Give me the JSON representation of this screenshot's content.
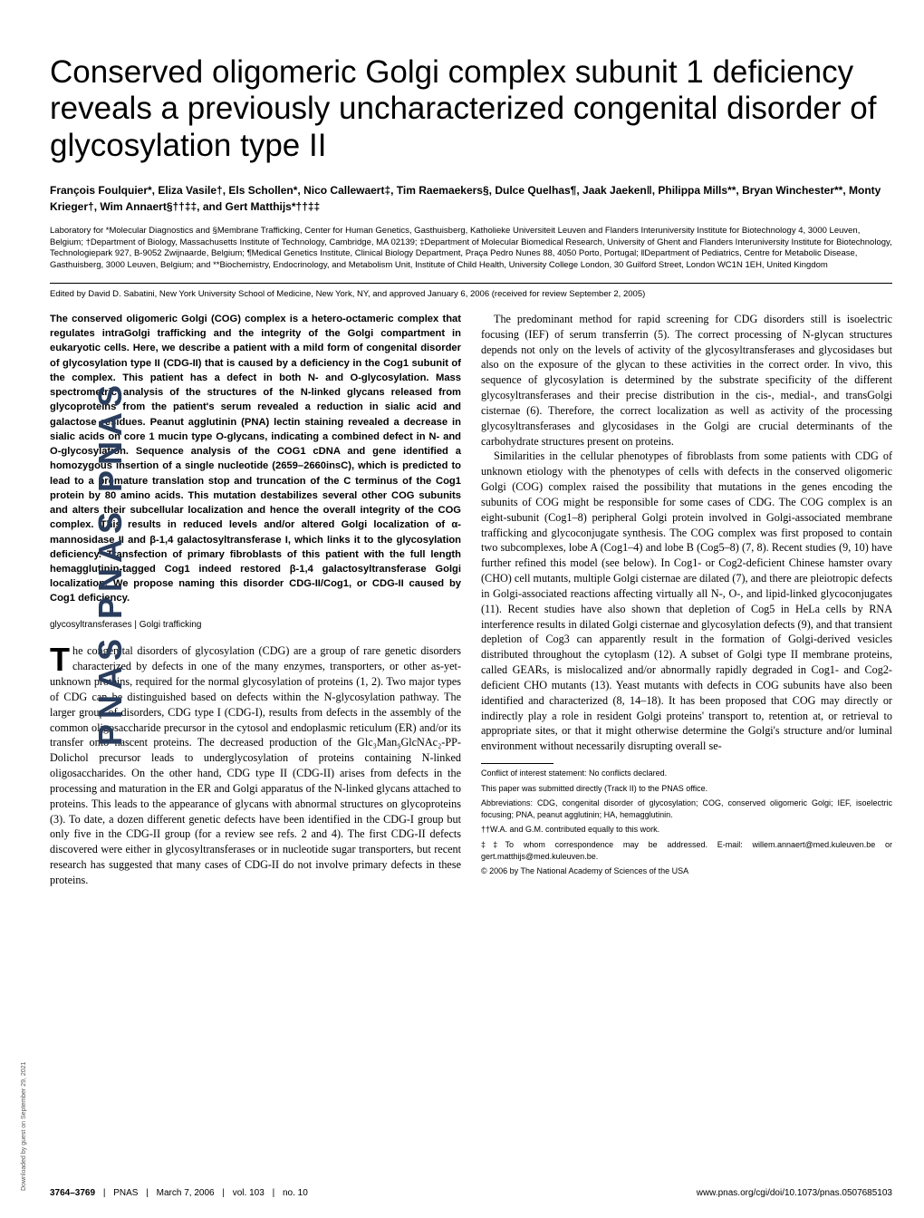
{
  "spine": "PNAS  PNAS  PNAS",
  "download_note": "Downloaded by guest on September 29, 2021",
  "title": "Conserved oligomeric Golgi complex subunit 1 deficiency reveals a previously uncharacterized congenital disorder of glycosylation type II",
  "authors": "François Foulquier*, Eliza Vasile†, Els Schollen*, Nico Callewaert‡, Tim Raemaekers§, Dulce Quelhas¶, Jaak Jaeken‖, Philippa Mills**, Bryan Winchester**, Monty Krieger†, Wim Annaert§††‡‡, and Gert Matthijs*††‡‡",
  "affiliations": "Laboratory for *Molecular Diagnostics and §Membrane Trafficking, Center for Human Genetics, Gasthuisberg, Katholieke Universiteit Leuven and Flanders Interuniversity Institute for Biotechnology 4, 3000 Leuven, Belgium; †Department of Biology, Massachusetts Institute of Technology, Cambridge, MA 02139; ‡Department of Molecular Biomedical Research, University of Ghent and Flanders Interuniversity Institute for Biotechnology, Technologiepark 927, B-9052 Zwijnaarde, Belgium; ¶Medical Genetics Institute, Clinical Biology Department, Praça Pedro Nunes 88, 4050 Porto, Portugal; ‖Department of Pediatrics, Centre for Metabolic Disease, Gasthuisberg, 3000 Leuven, Belgium; and **Biochemistry, Endocrinology, and Metabolism Unit, Institute of Child Health, University College London, 30 Guilford Street, London WC1N 1EH, United Kingdom",
  "editor": "Edited by David D. Sabatini, New York University School of Medicine, New York, NY, and approved January 6, 2006 (received for review September 2, 2005)",
  "abstract": "The conserved oligomeric Golgi (COG) complex is a hetero-octameric complex that regulates intraGolgi trafficking and the integrity of the Golgi compartment in eukaryotic cells. Here, we describe a patient with a mild form of congenital disorder of glycosylation type II (CDG-II) that is caused by a deficiency in the Cog1 subunit of the complex. This patient has a defect in both N- and O-glycosylation. Mass spectrometric analysis of the structures of the N-linked glycans released from glycoproteins from the patient's serum revealed a reduction in sialic acid and galactose residues. Peanut agglutinin (PNA) lectin staining revealed a decrease in sialic acids on core 1 mucin type O-glycans, indicating a combined defect in N- and O-glycosylation. Sequence analysis of the COG1 cDNA and gene identified a homozygous insertion of a single nucleotide (2659–2660insC), which is predicted to lead to a premature translation stop and truncation of the C terminus of the Cog1 protein by 80 amino acids. This mutation destabilizes several other COG subunits and alters their subcellular localization and hence the overall integrity of the COG complex. This results in reduced levels and/or altered Golgi localization of α-mannosidase II and β-1,4 galactosyltransferase I, which links it to the glycosylation deficiency. Transfection of primary fibroblasts of this patient with the full length hemagglutinin-tagged Cog1 indeed restored β-1,4 galactosyltransferase Golgi localization. We propose naming this disorder CDG-II/Cog1, or CDG-II caused by Cog1 deficiency.",
  "keywords": "glycosyltransferases | Golgi trafficking",
  "body_left_dropcap": "T",
  "body_left": "he congenital disorders of glycosylation (CDG) are a group of rare genetic disorders characterized by defects in one of the many enzymes, transporters, or other as-yet-unknown proteins, required for the normal glycosylation of proteins (1, 2). Two major types of CDG can be distinguished based on defects within the N-glycosylation pathway. The larger group of disorders, CDG type I (CDG-I), results from defects in the assembly of the common oligosaccharide precursor in the cytosol and endoplasmic reticulum (ER) and/or its transfer onto nascent proteins. The decreased production of the Glc₃Man₉GlcNAc₂-PP-Dolichol precursor leads to underglycosylation of proteins containing N-linked oligosaccharides. On the other hand, CDG type II (CDG-II) arises from defects in the processing and maturation in the ER and Golgi apparatus of the N-linked glycans attached to proteins. This leads to the appearance of glycans with abnormal structures on glycoproteins (3). To date, a dozen different genetic defects have been identified in the CDG-I group but only five in the CDG-II group (for a review see refs. 2 and 4). The first CDG-II defects discovered were either in glycosyltransferases or in nucleotide sugar transporters, but recent research has suggested that many cases of CDG-II do not involve primary defects in these proteins.",
  "body_right_p1": "The predominant method for rapid screening for CDG disorders still is isoelectric focusing (IEF) of serum transferrin (5). The correct processing of N-glycan structures depends not only on the levels of activity of the glycosyltransferases and glycosidases but also on the exposure of the glycan to these activities in the correct order. In vivo, this sequence of glycosylation is determined by the substrate specificity of the different glycosyltransferases and their precise distribution in the cis-, medial-, and transGolgi cisternae (6). Therefore, the correct localization as well as activity of the processing glycosyltransferases and glycosidases in the Golgi are crucial determinants of the carbohydrate structures present on proteins.",
  "body_right_p2": "Similarities in the cellular phenotypes of fibroblasts from some patients with CDG of unknown etiology with the phenotypes of cells with defects in the conserved oligomeric Golgi (COG) complex raised the possibility that mutations in the genes encoding the subunits of COG might be responsible for some cases of CDG. The COG complex is an eight-subunit (Cog1–8) peripheral Golgi protein involved in Golgi-associated membrane trafficking and glycoconjugate synthesis. The COG complex was first proposed to contain two subcomplexes, lobe A (Cog1–4) and lobe B (Cog5–8) (7, 8). Recent studies (9, 10) have further refined this model (see below). In Cog1- or Cog2-deficient Chinese hamster ovary (CHO) cell mutants, multiple Golgi cisternae are dilated (7), and there are pleiotropic defects in Golgi-associated reactions affecting virtually all N-, O-, and lipid-linked glycoconjugates (11). Recent studies have also shown that depletion of Cog5 in HeLa cells by RNA interference results in dilated Golgi cisternae and glycosylation defects (9), and that transient depletion of Cog3 can apparently result in the formation of Golgi-derived vesicles distributed throughout the cytoplasm (12). A subset of Golgi type II membrane proteins, called GEARs, is mislocalized and/or abnormally rapidly degraded in Cog1- and Cog2-deficient CHO mutants (13). Yeast mutants with defects in COG subunits have also been identified and characterized (8, 14–18). It has been proposed that COG may directly or indirectly play a role in resident Golgi proteins' transport to, retention at, or retrieval to appropriate sites, or that it might otherwise determine the Golgi's structure and/or luminal environment without necessarily disrupting overall se-",
  "footnotes": {
    "conflict": "Conflict of interest statement: No conflicts declared.",
    "track": "This paper was submitted directly (Track II) to the PNAS office.",
    "abbrev": "Abbreviations: CDG, congenital disorder of glycosylation; COG, conserved oligomeric Golgi; IEF, isoelectric focusing; PNA, peanut agglutinin; HA, hemagglutinin.",
    "equal": "††W.A. and G.M. contributed equally to this work.",
    "correspond": "‡‡To whom correspondence may be addressed. E-mail: willem.annaert@med.kuleuven.be or gert.matthijs@med.kuleuven.be.",
    "copyright": "© 2006 by The National Academy of Sciences of the USA"
  },
  "footer": {
    "pages": "3764–3769",
    "journal": "PNAS",
    "date": "March 7, 2006",
    "vol": "vol. 103",
    "issue": "no. 10",
    "url": "www.pnas.org/cgi/doi/10.1073/pnas.0507685103"
  }
}
